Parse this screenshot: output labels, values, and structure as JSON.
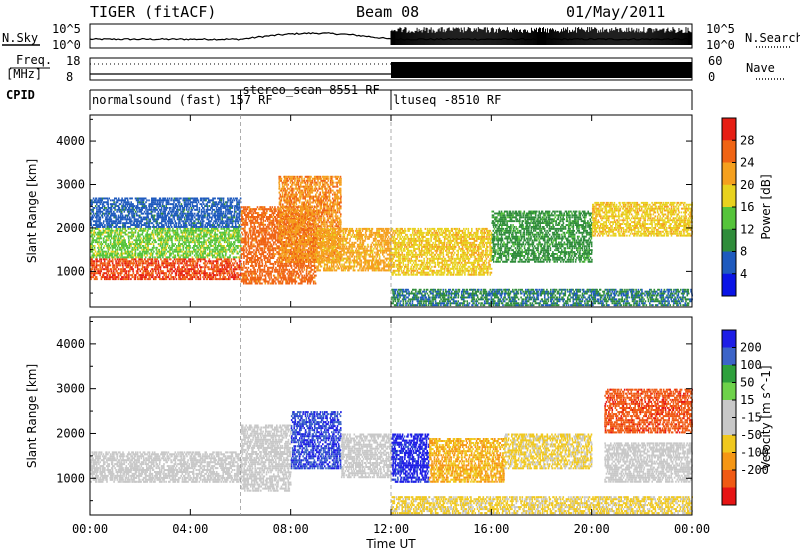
{
  "header": {
    "title": "TIGER (fitACF)",
    "beam": "Beam 08",
    "date": "01/May/2011"
  },
  "strip_labels": {
    "nsky": "N.Sky",
    "nsky_top": "10^5",
    "nsky_bottom": "10^0",
    "nsearch": "N.Search",
    "nsearch_top": "10^5",
    "nsearch_bottom": "10^0",
    "freq": "Freq.",
    "freq_unit": "[MHz]",
    "freq_top": "18",
    "freq_bottom": "8",
    "nave": "Nave",
    "nave_top": "60",
    "nave_bottom": "0",
    "cpid": "CPID"
  },
  "cpid_segments": [
    {
      "label": "normalsound (fast) 157 RF",
      "start_hour": 0
    },
    {
      "label": "stereo_scan 8551 RF",
      "start_hour": 6
    },
    {
      "label": "ltuseq -8510 RF",
      "start_hour": 12
    }
  ],
  "colors": {
    "power_scale": [
      "#0a14e6",
      "#1e5abe",
      "#2f8c3a",
      "#55c43a",
      "#e8d21e",
      "#f5a01e",
      "#f06414",
      "#e61e14"
    ],
    "velocity_scale": [
      "#1e1ee6",
      "#3c64c8",
      "#2ea03c",
      "#6ed24a",
      "#c8c8c8",
      "#c8c8c8",
      "#f0c81e",
      "#f59614",
      "#f05a14",
      "#e61414"
    ],
    "axis": "#000000"
  },
  "chart_data": [
    {
      "type": "heatmap",
      "title": "",
      "xlabel": "Time UT",
      "ylabel": "Slant Range [km]",
      "xlim": [
        0,
        24
      ],
      "ylim": [
        180,
        4600
      ],
      "x_ticks": [
        "00:00",
        "04:00",
        "08:00",
        "12:00",
        "16:00",
        "20:00",
        "00:00"
      ],
      "y_ticks": [
        1000,
        2000,
        3000,
        4000
      ],
      "colorbar_label": "Power [dB]",
      "colorbar_ticks": [
        4,
        8,
        12,
        16,
        20,
        24,
        28
      ],
      "colorbar_range": [
        0,
        30
      ],
      "mode_change_hours": [
        6,
        12
      ],
      "echo_regions": [
        {
          "t0": 0,
          "t1": 6,
          "r0": 800,
          "r1": 1300,
          "level": 26
        },
        {
          "t0": 0,
          "t1": 6,
          "r0": 1300,
          "r1": 2000,
          "level": 14
        },
        {
          "t0": 0,
          "t1": 6,
          "r0": 2000,
          "r1": 2700,
          "level": 6
        },
        {
          "t0": 6,
          "t1": 9,
          "r0": 700,
          "r1": 2500,
          "level": 24
        },
        {
          "t0": 7.5,
          "t1": 10,
          "r0": 1200,
          "r1": 3200,
          "level": 22
        },
        {
          "t0": 9,
          "t1": 12,
          "r0": 1000,
          "r1": 2000,
          "level": 20
        },
        {
          "t0": 12,
          "t1": 16,
          "r0": 900,
          "r1": 2000,
          "level": 18
        },
        {
          "t0": 16,
          "t1": 20,
          "r0": 1200,
          "r1": 2400,
          "level": 10
        },
        {
          "t0": 20,
          "t1": 24,
          "r0": 1800,
          "r1": 2600,
          "level": 18
        },
        {
          "t0": 12,
          "t1": 24,
          "r0": 200,
          "r1": 600,
          "level": 8
        }
      ]
    },
    {
      "type": "heatmap",
      "title": "",
      "xlabel": "Time UT",
      "ylabel": "Slant Range [km]",
      "xlim": [
        0,
        24
      ],
      "ylim": [
        180,
        4600
      ],
      "x_ticks": [
        "00:00",
        "04:00",
        "08:00",
        "12:00",
        "16:00",
        "20:00",
        "00:00"
      ],
      "y_ticks": [
        1000,
        2000,
        3000,
        4000
      ],
      "colorbar_label": "Velocity [m s^-1]",
      "colorbar_ticks": [
        200,
        100,
        50,
        15,
        -15,
        -50,
        -100,
        -200
      ],
      "colorbar_range": [
        -250,
        250
      ],
      "mode_change_hours": [
        6,
        12
      ],
      "echo_regions": [
        {
          "t0": 0,
          "t1": 6,
          "r0": 900,
          "r1": 1600,
          "level": 0
        },
        {
          "t0": 6,
          "t1": 8,
          "r0": 700,
          "r1": 2200,
          "level": 10
        },
        {
          "t0": 8,
          "t1": 10,
          "r0": 1200,
          "r1": 2500,
          "level": 200
        },
        {
          "t0": 10,
          "t1": 12,
          "r0": 1000,
          "r1": 2000,
          "level": 0
        },
        {
          "t0": 12,
          "t1": 13.5,
          "r0": 900,
          "r1": 2000,
          "level": 220
        },
        {
          "t0": 13.5,
          "t1": 16.5,
          "r0": 900,
          "r1": 1900,
          "level": -100
        },
        {
          "t0": 16.5,
          "t1": 20,
          "r0": 1200,
          "r1": 2000,
          "level": -60
        },
        {
          "t0": 20.5,
          "t1": 24,
          "r0": 2000,
          "r1": 3000,
          "level": -180
        },
        {
          "t0": 20.5,
          "t1": 24,
          "r0": 900,
          "r1": 1800,
          "level": 0
        },
        {
          "t0": 12,
          "t1": 24,
          "r0": 200,
          "r1": 600,
          "level": -60
        }
      ]
    }
  ]
}
